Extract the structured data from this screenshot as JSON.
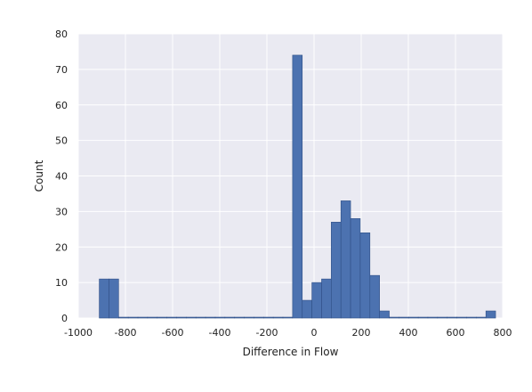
{
  "chart_data": {
    "type": "bar",
    "xlabel": "Difference in Flow",
    "ylabel": "Count",
    "xlim": [
      -1000,
      800
    ],
    "ylim": [
      0,
      80
    ],
    "xticks": [
      -1000,
      -800,
      -600,
      -400,
      -200,
      0,
      200,
      400,
      600,
      800
    ],
    "yticks": [
      0,
      10,
      20,
      30,
      40,
      50,
      60,
      70,
      80
    ],
    "grid": true,
    "bin_width": 41,
    "bins": [
      {
        "x0": -911,
        "x1": -870,
        "count": 11
      },
      {
        "x0": -870,
        "x1": -829,
        "count": 11
      },
      {
        "x0": -829,
        "x1": -788,
        "count": 0
      },
      {
        "x0": -788,
        "x1": -747,
        "count": 0
      },
      {
        "x0": -747,
        "x1": -706,
        "count": 0
      },
      {
        "x0": -706,
        "x1": -665,
        "count": 0
      },
      {
        "x0": -665,
        "x1": -624,
        "count": 0
      },
      {
        "x0": -624,
        "x1": -583,
        "count": 0
      },
      {
        "x0": -583,
        "x1": -542,
        "count": 0
      },
      {
        "x0": -542,
        "x1": -501,
        "count": 0
      },
      {
        "x0": -501,
        "x1": -460,
        "count": 0
      },
      {
        "x0": -460,
        "x1": -419,
        "count": 0
      },
      {
        "x0": -419,
        "x1": -378,
        "count": 0
      },
      {
        "x0": -378,
        "x1": -337,
        "count": 0
      },
      {
        "x0": -337,
        "x1": -296,
        "count": 0
      },
      {
        "x0": -296,
        "x1": -255,
        "count": 0
      },
      {
        "x0": -255,
        "x1": -214,
        "count": 0
      },
      {
        "x0": -214,
        "x1": -173,
        "count": 0
      },
      {
        "x0": -173,
        "x1": -132,
        "count": 0
      },
      {
        "x0": -132,
        "x1": -91,
        "count": 0
      },
      {
        "x0": -91,
        "x1": -50,
        "count": 74
      },
      {
        "x0": -50,
        "x1": -9,
        "count": 5
      },
      {
        "x0": -9,
        "x1": 32,
        "count": 10
      },
      {
        "x0": 32,
        "x1": 73,
        "count": 11
      },
      {
        "x0": 73,
        "x1": 114,
        "count": 27
      },
      {
        "x0": 114,
        "x1": 155,
        "count": 33
      },
      {
        "x0": 155,
        "x1": 196,
        "count": 28
      },
      {
        "x0": 196,
        "x1": 237,
        "count": 24
      },
      {
        "x0": 237,
        "x1": 278,
        "count": 12
      },
      {
        "x0": 278,
        "x1": 319,
        "count": 2
      },
      {
        "x0": 319,
        "x1": 360,
        "count": 0
      },
      {
        "x0": 360,
        "x1": 401,
        "count": 0
      },
      {
        "x0": 401,
        "x1": 442,
        "count": 0
      },
      {
        "x0": 442,
        "x1": 483,
        "count": 0
      },
      {
        "x0": 483,
        "x1": 524,
        "count": 0
      },
      {
        "x0": 524,
        "x1": 565,
        "count": 0
      },
      {
        "x0": 565,
        "x1": 606,
        "count": 0
      },
      {
        "x0": 606,
        "x1": 647,
        "count": 0
      },
      {
        "x0": 647,
        "x1": 688,
        "count": 0
      },
      {
        "x0": 688,
        "x1": 729,
        "count": 0
      },
      {
        "x0": 729,
        "x1": 770,
        "count": 2
      }
    ]
  },
  "colors": {
    "bar_fill": "#4c72b0",
    "bar_edge": "#2f4f86",
    "plot_background": "#eaeaf2",
    "grid": "#ffffff",
    "text": "#222222"
  }
}
